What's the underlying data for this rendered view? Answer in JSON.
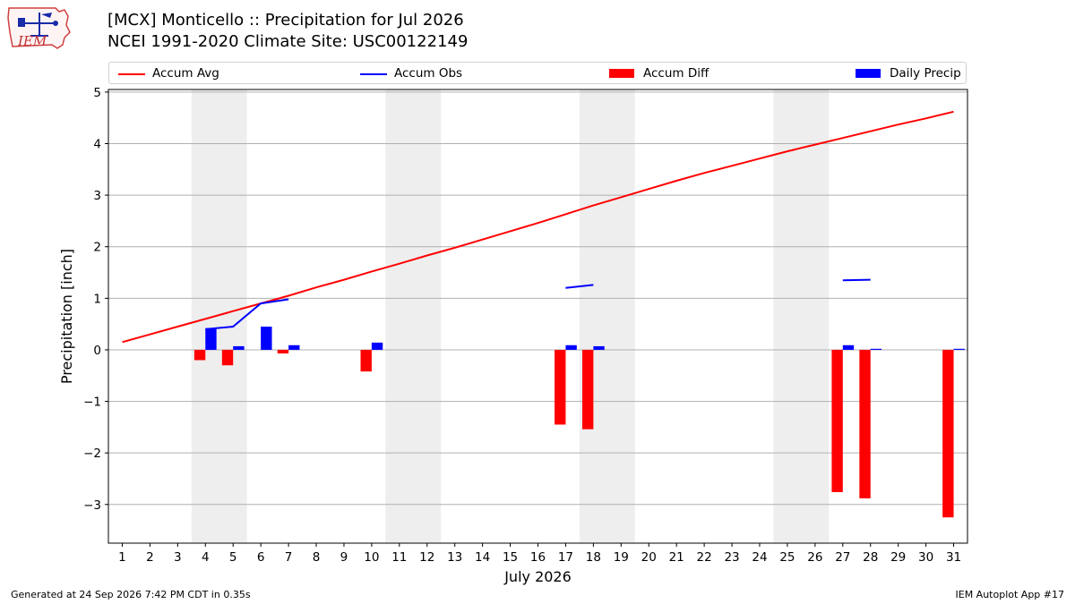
{
  "title_line1": "[MCX] Monticello :: Precipitation for Jul 2026",
  "title_line2": "NCEI 1991-2020 Climate Site: USC00122149",
  "logo": {
    "icon": "iem-logo-icon",
    "text": "IEM"
  },
  "footer_left": "Generated at 24 Sep 2026 7:42 PM CDT in 0.35s",
  "footer_right": "IEM Autoplot App #17",
  "colors": {
    "avg": "#ff0000",
    "obs": "#0000ff",
    "diff": "#ff0000",
    "daily": "#0000ff",
    "weekend": "#eeeeee",
    "grid": "#b0b0b0"
  },
  "chart_data": {
    "type": "bar",
    "xlabel": "July 2026",
    "ylabel": "Precipitation [inch]",
    "ylim": [
      -3.75,
      5.05
    ],
    "yticks": [
      5,
      4,
      3,
      2,
      1,
      0,
      -1,
      -2,
      -3
    ],
    "ytick_labels": [
      "5",
      "4",
      "3",
      "2",
      "1",
      "0",
      "−1",
      "−2",
      "−3"
    ],
    "xlim": [
      0.5,
      31.5
    ],
    "days": [
      1,
      2,
      3,
      4,
      5,
      6,
      7,
      8,
      9,
      10,
      11,
      12,
      13,
      14,
      15,
      16,
      17,
      18,
      19,
      20,
      21,
      22,
      23,
      24,
      25,
      26,
      27,
      28,
      29,
      30,
      31
    ],
    "weekend_spans": [
      [
        3.5,
        5.5
      ],
      [
        10.5,
        12.5
      ],
      [
        17.5,
        19.5
      ],
      [
        24.5,
        26.5
      ]
    ],
    "grid": true,
    "legend": {
      "placement": "top",
      "entries": [
        {
          "label": "Accum Avg",
          "kind": "line",
          "color": "#ff0000"
        },
        {
          "label": "Accum Obs",
          "kind": "line",
          "color": "#0000ff"
        },
        {
          "label": "Accum Diff",
          "kind": "patch",
          "color": "#ff0000"
        },
        {
          "label": "Daily Precip",
          "kind": "patch",
          "color": "#0000ff"
        }
      ]
    },
    "accum_avg": [
      0.15,
      0.3,
      0.45,
      0.6,
      0.75,
      0.9,
      1.05,
      1.21,
      1.36,
      1.52,
      1.67,
      1.83,
      1.98,
      2.14,
      2.3,
      2.46,
      2.63,
      2.8,
      2.96,
      3.12,
      3.28,
      3.43,
      3.57,
      3.71,
      3.85,
      3.98,
      4.11,
      4.24,
      4.37,
      4.49,
      4.62
    ],
    "accum_obs": [
      null,
      null,
      null,
      0.4,
      0.45,
      0.9,
      0.98,
      null,
      null,
      null,
      null,
      null,
      null,
      null,
      null,
      null,
      1.2,
      1.26,
      null,
      null,
      null,
      null,
      null,
      null,
      null,
      null,
      1.35,
      1.36,
      null,
      null,
      null
    ],
    "accum_diff": [
      null,
      null,
      null,
      -0.2,
      -0.3,
      0.0,
      -0.07,
      null,
      null,
      -0.42,
      null,
      null,
      null,
      null,
      null,
      null,
      -1.45,
      -1.54,
      null,
      null,
      null,
      null,
      null,
      null,
      null,
      null,
      -2.76,
      -2.88,
      null,
      null,
      -3.25
    ],
    "daily_precip": [
      null,
      null,
      null,
      0.42,
      0.07,
      0.45,
      0.09,
      null,
      null,
      0.14,
      null,
      null,
      null,
      null,
      null,
      null,
      0.09,
      0.07,
      null,
      null,
      null,
      null,
      null,
      null,
      null,
      null,
      0.09,
      0.02,
      null,
      null,
      0.02
    ]
  }
}
